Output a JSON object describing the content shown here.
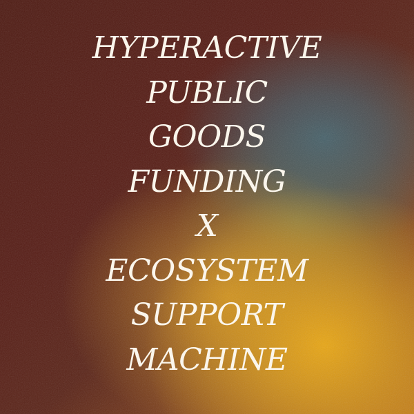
{
  "title_lines": [
    "HYPERACTIVE",
    "PUBLIC",
    "GOODS",
    "FUNDING",
    "X",
    "ECOSYSTEM",
    "SUPPORT",
    "MACHINE"
  ],
  "colors": {
    "background_base": "#4e1a12",
    "accent_teal": "#46646e",
    "accent_yellow": "#ecaa14",
    "text": "#fbf6ec"
  }
}
